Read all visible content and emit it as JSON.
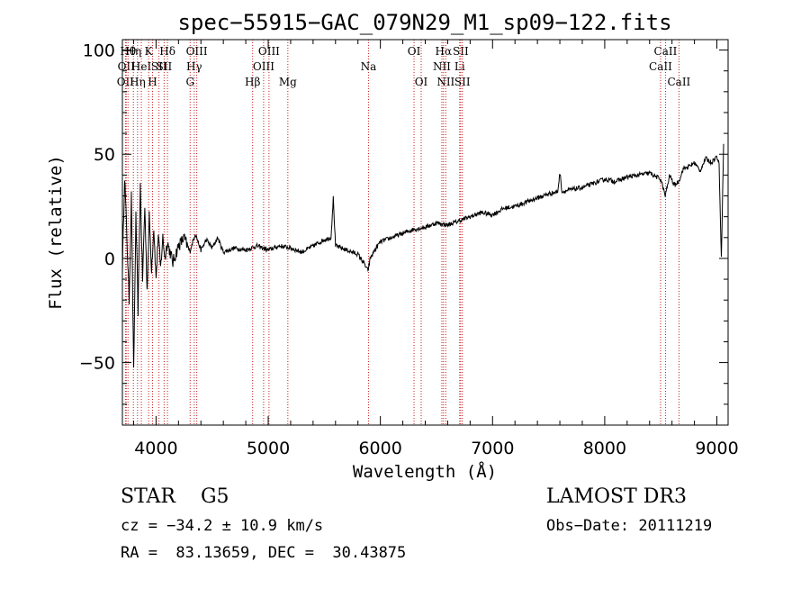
{
  "chart_data": {
    "type": "line",
    "title": "spec−55915−GAC_079N29_M1_sp09−122.fits",
    "xlabel": "Wavelength (Å)",
    "ylabel": "Flux (relative)",
    "xlim": [
      3700,
      9100
    ],
    "ylim": [
      -80,
      105
    ],
    "xticks": [
      4000,
      5000,
      6000,
      7000,
      8000,
      9000
    ],
    "xtick_labels": [
      "4000",
      "5000",
      "6000",
      "7000",
      "8000",
      "9000"
    ],
    "yticks": [
      100,
      50,
      0,
      -50
    ],
    "ytick_labels": [
      "100",
      "50",
      "0",
      "−50"
    ],
    "spectrum": {
      "x": [
        3700,
        3720,
        3740,
        3760,
        3780,
        3800,
        3820,
        3840,
        3860,
        3880,
        3900,
        3920,
        3940,
        3960,
        3980,
        4000,
        4020,
        4040,
        4060,
        4080,
        4100,
        4150,
        4200,
        4250,
        4300,
        4350,
        4400,
        4450,
        4500,
        4550,
        4600,
        4700,
        4800,
        4900,
        5000,
        5100,
        5200,
        5300,
        5400,
        5500,
        5560,
        5580,
        5600,
        5700,
        5800,
        5850,
        5890,
        5910,
        5950,
        6000,
        6100,
        6200,
        6300,
        6400,
        6500,
        6600,
        6700,
        6800,
        6900,
        7000,
        7100,
        7200,
        7300,
        7400,
        7500,
        7580,
        7600,
        7620,
        7700,
        7800,
        7900,
        8000,
        8100,
        8200,
        8300,
        8400,
        8500,
        8540,
        8580,
        8620,
        8660,
        8700,
        8750,
        8800,
        8850,
        8900,
        8950,
        9000,
        9020,
        9040,
        9060
      ],
      "y": [
        -5,
        40,
        10,
        -20,
        30,
        -55,
        20,
        -25,
        35,
        -10,
        25,
        -15,
        20,
        -5,
        15,
        -10,
        12,
        -5,
        10,
        0,
        8,
        -2,
        6,
        10,
        3,
        12,
        4,
        9,
        5,
        10,
        3,
        5,
        4,
        6,
        4,
        6,
        5,
        3,
        6,
        9,
        10,
        29,
        6,
        4,
        2,
        -2,
        -6,
        0,
        4,
        8,
        10,
        12,
        14,
        15,
        17,
        16,
        18,
        20,
        22,
        21,
        24,
        25,
        27,
        29,
        31,
        32,
        41,
        32,
        33,
        34,
        36,
        38,
        37,
        39,
        40,
        41,
        38,
        30,
        40,
        35,
        37,
        43,
        44,
        46,
        42,
        48,
        46,
        49,
        45,
        0,
        55
      ]
    },
    "line_markers": [
      {
        "x": 3727,
        "row": 2,
        "label": "OII"
      },
      {
        "x": 3734,
        "row": 1,
        "label": "OII"
      },
      {
        "x": 3750,
        "row": 0,
        "label": "Hθ"
      },
      {
        "x": 3798,
        "row": 0,
        "label": "Hη"
      },
      {
        "x": 3835,
        "row": 2,
        "label": "Hη"
      },
      {
        "x": 3869,
        "row": 1,
        "label": "HeI"
      },
      {
        "x": 3934,
        "row": 0,
        "label": "K"
      },
      {
        "x": 3969,
        "row": 2,
        "label": "H"
      },
      {
        "x": 4026,
        "row": 1,
        "label": "SII"
      },
      {
        "x": 4102,
        "row": 0,
        "label": "Hδ"
      },
      {
        "x": 4072,
        "row": 1,
        "label": "SII"
      },
      {
        "x": 4304,
        "row": 2,
        "label": "G"
      },
      {
        "x": 4340,
        "row": 1,
        "label": "Hγ"
      },
      {
        "x": 4363,
        "row": 0,
        "label": "OIII"
      },
      {
        "x": 4861,
        "row": 2,
        "label": "Hβ"
      },
      {
        "x": 4959,
        "row": 1,
        "label": "OIII"
      },
      {
        "x": 5007,
        "row": 0,
        "label": "OIII"
      },
      {
        "x": 5175,
        "row": 2,
        "label": "Mg"
      },
      {
        "x": 5894,
        "row": 1,
        "label": "Na"
      },
      {
        "x": 6300,
        "row": 0,
        "label": "OI"
      },
      {
        "x": 6364,
        "row": 2,
        "label": "OI"
      },
      {
        "x": 6548,
        "row": 1,
        "label": "NII"
      },
      {
        "x": 6563,
        "row": 0,
        "label": "Hα"
      },
      {
        "x": 6583,
        "row": 2,
        "label": "NII"
      },
      {
        "x": 6707,
        "row": 1,
        "label": "Li"
      },
      {
        "x": 6716,
        "row": 0,
        "label": "SII"
      },
      {
        "x": 6731,
        "row": 2,
        "label": "SII"
      },
      {
        "x": 8498,
        "row": 1,
        "label": "CaII"
      },
      {
        "x": 8542,
        "row": 0,
        "label": "CaII"
      },
      {
        "x": 8662,
        "row": 2,
        "label": "CaII"
      }
    ]
  },
  "info": {
    "classification": "STAR    G5",
    "survey": "LAMOST DR3",
    "redshift": "cz = −34.2 ± 10.9 km/s",
    "obs_date": "Obs−Date: 20111219",
    "coords": "RA =  83.13659, DEC =  30.43875"
  }
}
